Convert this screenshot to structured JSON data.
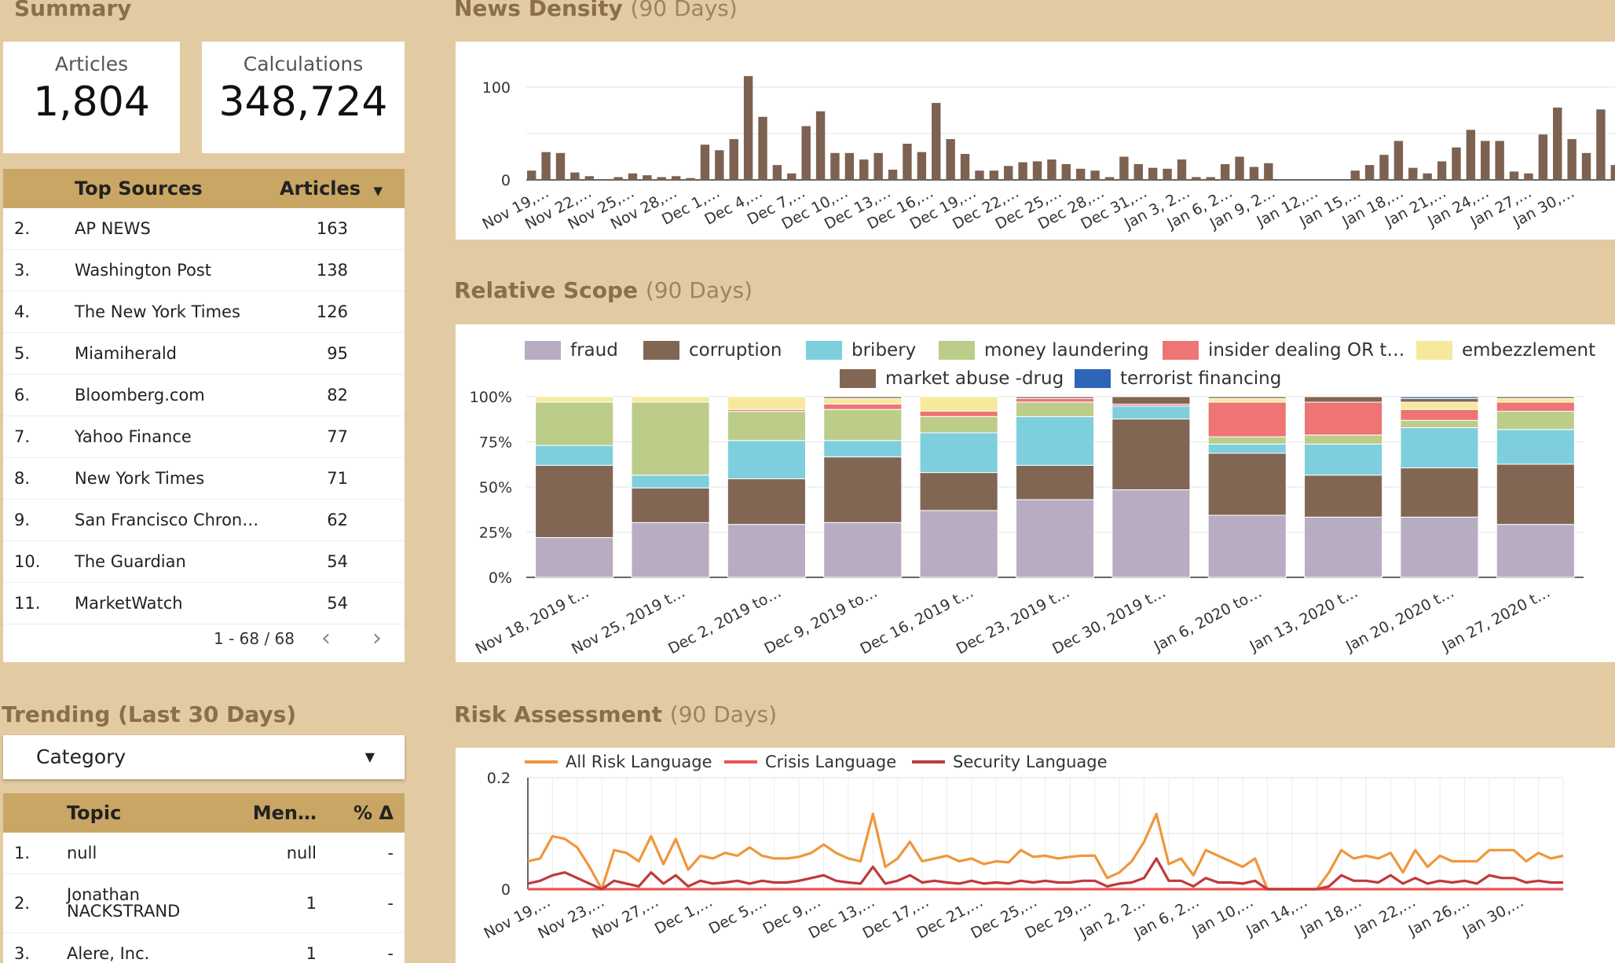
{
  "summary": {
    "title": "Summary",
    "articles_label": "Articles",
    "articles_value": "1,804",
    "calculations_label": "Calculations",
    "calculations_value": "348,724"
  },
  "top_sources": {
    "col_source": "Top Sources",
    "col_articles": "Articles",
    "sort_icon": "sort-desc-icon",
    "rows": [
      {
        "rank": "2.",
        "source": "AP NEWS",
        "articles": "163"
      },
      {
        "rank": "3.",
        "source": "Washington Post",
        "articles": "138"
      },
      {
        "rank": "4.",
        "source": "The New York Times",
        "articles": "126"
      },
      {
        "rank": "5.",
        "source": "Miamiherald",
        "articles": "95"
      },
      {
        "rank": "6.",
        "source": "Bloomberg.com",
        "articles": "82"
      },
      {
        "rank": "7.",
        "source": "Yahoo Finance",
        "articles": "77"
      },
      {
        "rank": "8.",
        "source": "New York Times",
        "articles": "71"
      },
      {
        "rank": "9.",
        "source": "San Francisco Chron…",
        "articles": "62"
      },
      {
        "rank": "10.",
        "source": "The Guardian",
        "articles": "54"
      },
      {
        "rank": "11.",
        "source": "MarketWatch",
        "articles": "54"
      }
    ],
    "pagination": "1 - 68 / 68"
  },
  "trending": {
    "title": "Trending (Last 30 Days)",
    "dropdown_value": "Category",
    "col_topic": "Topic",
    "col_mentions": "Men…",
    "col_delta": "% Δ",
    "rows": [
      {
        "rank": "1.",
        "topic": "null",
        "mentions": "null",
        "delta": "-"
      },
      {
        "rank": "2.",
        "topic": "Jonathan NACKSTRAND",
        "mentions": "1",
        "delta": "-"
      },
      {
        "rank": "3.",
        "topic": "Alere, Inc.",
        "mentions": "1",
        "delta": "-"
      }
    ]
  },
  "news_density": {
    "title": "News Density",
    "subtitle": "(90 Days)",
    "chart_data": {
      "type": "bar",
      "y_ticks": [
        "0",
        "100"
      ],
      "ylim": [
        0,
        120
      ],
      "grid": true,
      "x_labels": [
        "Nov 19,…",
        "Nov 22,…",
        "Nov 25,…",
        "Nov 28,…",
        "Dec 1,…",
        "Dec 4,…",
        "Dec 7,…",
        "Dec 10,…",
        "Dec 13,…",
        "Dec 16,…",
        "Dec 19,…",
        "Dec 22,…",
        "Dec 25,…",
        "Dec 28,…",
        "Dec 31,…",
        "Jan 3, 2…",
        "Jan 6, 2…",
        "Jan 9, 2…",
        "Jan 12,…",
        "Jan 15,…",
        "Jan 18,…",
        "Jan 21,…",
        "Jan 24,…",
        "Jan 27,…",
        "Jan 30,…"
      ],
      "values": [
        10,
        30,
        29,
        8,
        4,
        0,
        3,
        7,
        5,
        3,
        4,
        2,
        38,
        32,
        44,
        112,
        68,
        16,
        7,
        58,
        74,
        29,
        29,
        22,
        29,
        11,
        39,
        30,
        83,
        44,
        28,
        10,
        10,
        15,
        19,
        20,
        22,
        17,
        12,
        10,
        3,
        25,
        17,
        13,
        12,
        22,
        3,
        3,
        17,
        25,
        14,
        18,
        0,
        0,
        0,
        0,
        0,
        10,
        16,
        27,
        42,
        13,
        7,
        20,
        35,
        54,
        42,
        42,
        9,
        7,
        49,
        78,
        44,
        29,
        76,
        16
      ],
      "color": "#7d6251"
    }
  },
  "relative_scope": {
    "title": "Relative Scope",
    "subtitle": "(90 Days)",
    "chart_data": {
      "type": "bar",
      "stacked": "percent",
      "y_ticks": [
        "0%",
        "25%",
        "50%",
        "75%",
        "100%"
      ],
      "ylim": [
        0,
        100
      ],
      "categories": [
        "Nov 18, 2019 t…",
        "Nov 25, 2019 t…",
        "Dec 2, 2019 to…",
        "Dec 9, 2019 to…",
        "Dec 16, 2019 t…",
        "Dec 23, 2019 t…",
        "Dec 30, 2019 t…",
        "Jan 6, 2020 to…",
        "Jan 13, 2020 t…",
        "Jan 20, 2020 t…",
        "Jan 27, 2020 t…"
      ],
      "legend_position": "top",
      "series": [
        {
          "name": "fraud",
          "color": "#b8acc2",
          "values": [
            22,
            30,
            29,
            30,
            37,
            43,
            47,
            34,
            33,
            33,
            29
          ]
        },
        {
          "name": "corruption",
          "color": "#826654",
          "values": [
            40,
            19,
            25,
            36,
            21,
            19,
            38,
            34,
            23,
            27,
            33
          ]
        },
        {
          "name": "bribery",
          "color": "#7ecfdd",
          "values": [
            11,
            7,
            21,
            9,
            22,
            27,
            7,
            5,
            17,
            22,
            19
          ]
        },
        {
          "name": "money laundering",
          "color": "#bccd8a",
          "values": [
            24,
            40,
            16,
            17,
            9,
            8,
            0,
            4,
            5,
            4,
            10
          ]
        },
        {
          "name": "insider dealing OR t…",
          "color": "#ef7474",
          "values": [
            0,
            0,
            1,
            3,
            3,
            2,
            1,
            19,
            18,
            6,
            5
          ]
        },
        {
          "name": "embezzlement",
          "color": "#f7e99b",
          "values": [
            3,
            3,
            7,
            3,
            8,
            0,
            0,
            2,
            0,
            4,
            2
          ]
        },
        {
          "name": "market abuse -drug",
          "color": "#826654",
          "values": [
            0,
            0,
            0,
            1,
            0,
            1,
            4,
            1,
            3,
            2,
            1
          ]
        },
        {
          "name": "terrorist financing",
          "color": "#2d66b8",
          "values": [
            0,
            0,
            0,
            0,
            0,
            0,
            0,
            0,
            0,
            1,
            0
          ]
        }
      ]
    }
  },
  "risk": {
    "title": "Risk Assessment",
    "subtitle": "(90 Days)",
    "chart_data": {
      "type": "line",
      "y_ticks": [
        "0",
        "0.2"
      ],
      "ylim": [
        0,
        0.2
      ],
      "grid": true,
      "x_labels": [
        "Nov 19,…",
        "Nov 23,…",
        "Nov 27,…",
        "Dec 1,…",
        "Dec 5,…",
        "Dec 9,…",
        "Dec 13,…",
        "Dec 17,…",
        "Dec 21,…",
        "Dec 25,…",
        "Dec 29,…",
        "Jan 2, 2…",
        "Jan 6, 2…",
        "Jan 10,…",
        "Jan 14,…",
        "Jan 18,…",
        "Jan 22,…",
        "Jan 26,…",
        "Jan 30,…"
      ],
      "series": [
        {
          "name": "All Risk Language",
          "color": "#f0963b",
          "values": [
            0.05,
            0.055,
            0.095,
            0.09,
            0.075,
            0.04,
            0.0,
            0.07,
            0.065,
            0.05,
            0.095,
            0.045,
            0.09,
            0.035,
            0.06,
            0.055,
            0.065,
            0.06,
            0.075,
            0.06,
            0.055,
            0.055,
            0.058,
            0.065,
            0.08,
            0.065,
            0.055,
            0.05,
            0.135,
            0.04,
            0.055,
            0.085,
            0.05,
            0.055,
            0.06,
            0.05,
            0.055,
            0.045,
            0.05,
            0.048,
            0.07,
            0.058,
            0.06,
            0.055,
            0.058,
            0.06,
            0.06,
            0.02,
            0.03,
            0.05,
            0.085,
            0.135,
            0.045,
            0.055,
            0.025,
            0.07,
            0.06,
            0.05,
            0.04,
            0.055,
            0.0,
            0.0,
            0.0,
            0.0,
            0.0,
            0.03,
            0.07,
            0.055,
            0.06,
            0.055,
            0.065,
            0.03,
            0.07,
            0.04,
            0.06,
            0.05,
            0.05,
            0.05,
            0.07,
            0.07,
            0.07,
            0.05,
            0.065,
            0.055,
            0.06
          ]
        },
        {
          "name": "Crisis Language",
          "color": "#ea5455",
          "values": [
            0.0,
            0.0,
            0.0,
            0.0,
            0.0,
            0.0,
            0.0,
            0.0,
            0.0,
            0.0,
            0.0,
            0.0,
            0.0,
            0.0,
            0.0,
            0.0,
            0.0,
            0.0,
            0.0,
            0.0,
            0.0,
            0.0,
            0.0,
            0.0,
            0.0,
            0.0,
            0.0,
            0.0,
            0.0,
            0.0,
            0.0,
            0.0,
            0.0,
            0.0,
            0.0,
            0.0,
            0.0,
            0.0,
            0.0,
            0.0,
            0.0,
            0.0,
            0.0,
            0.0,
            0.0,
            0.0,
            0.0,
            0.0,
            0.0,
            0.0,
            0.0,
            0.0,
            0.0,
            0.0,
            0.0,
            0.0,
            0.0,
            0.0,
            0.0,
            0.0,
            0.0,
            0.0,
            0.0,
            0.0,
            0.0,
            0.0,
            0.0,
            0.0,
            0.0,
            0.0,
            0.0,
            0.0,
            0.0,
            0.0,
            0.0,
            0.0,
            0.0,
            0.0,
            0.0,
            0.0,
            0.0,
            0.0,
            0.0,
            0.0,
            0.0
          ]
        },
        {
          "name": "Security Language",
          "color": "#c0393b",
          "values": [
            0.01,
            0.015,
            0.025,
            0.03,
            0.02,
            0.01,
            0.0,
            0.015,
            0.01,
            0.005,
            0.03,
            0.01,
            0.025,
            0.005,
            0.015,
            0.01,
            0.012,
            0.015,
            0.01,
            0.015,
            0.012,
            0.012,
            0.015,
            0.02,
            0.025,
            0.015,
            0.012,
            0.01,
            0.04,
            0.01,
            0.015,
            0.025,
            0.012,
            0.015,
            0.012,
            0.01,
            0.015,
            0.01,
            0.012,
            0.01,
            0.015,
            0.012,
            0.015,
            0.012,
            0.012,
            0.015,
            0.015,
            0.005,
            0.01,
            0.012,
            0.02,
            0.055,
            0.015,
            0.015,
            0.005,
            0.02,
            0.012,
            0.012,
            0.01,
            0.015,
            0.0,
            0.0,
            0.0,
            0.0,
            0.0,
            0.005,
            0.025,
            0.015,
            0.015,
            0.012,
            0.025,
            0.01,
            0.02,
            0.01,
            0.015,
            0.012,
            0.015,
            0.01,
            0.025,
            0.02,
            0.02,
            0.012,
            0.015,
            0.012,
            0.012
          ]
        }
      ]
    }
  }
}
